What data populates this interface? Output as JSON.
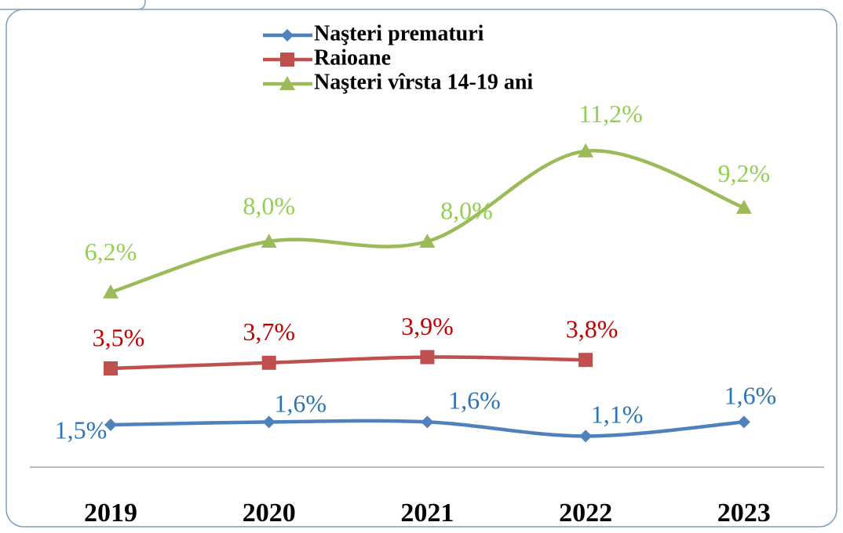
{
  "chart_data": {
    "type": "line",
    "categories": [
      "2019",
      "2020",
      "2021",
      "2022",
      "2023"
    ],
    "series": [
      {
        "name": "Naşteri prematuri",
        "color": "#4f81bd",
        "label_color": "#2e75b6",
        "marker": "diamond",
        "values": [
          1.5,
          1.6,
          1.6,
          1.1,
          1.6
        ],
        "value_labels": [
          "1,5%",
          "1,6%",
          "1,6%",
          "1,1%",
          "1,6%"
        ]
      },
      {
        "name": "Raioane",
        "color": "#c0504d",
        "label_color": "#c00000",
        "marker": "square",
        "values": [
          3.5,
          3.7,
          3.9,
          3.8,
          null
        ],
        "value_labels": [
          "3,5%",
          "3,7%",
          "3,9%",
          "3,8%",
          null
        ]
      },
      {
        "name": "Naşteri vîrsta 14-19 ani",
        "color": "#9bbb59",
        "label_color": "#92d050",
        "marker": "triangle",
        "values": [
          6.2,
          8.0,
          8.0,
          11.2,
          9.2
        ],
        "value_labels": [
          "6,2%",
          "8,0%",
          "8,0%",
          "11,2%",
          "9,2%"
        ]
      }
    ],
    "ylim": [
      0,
      16
    ],
    "smooth": true
  }
}
